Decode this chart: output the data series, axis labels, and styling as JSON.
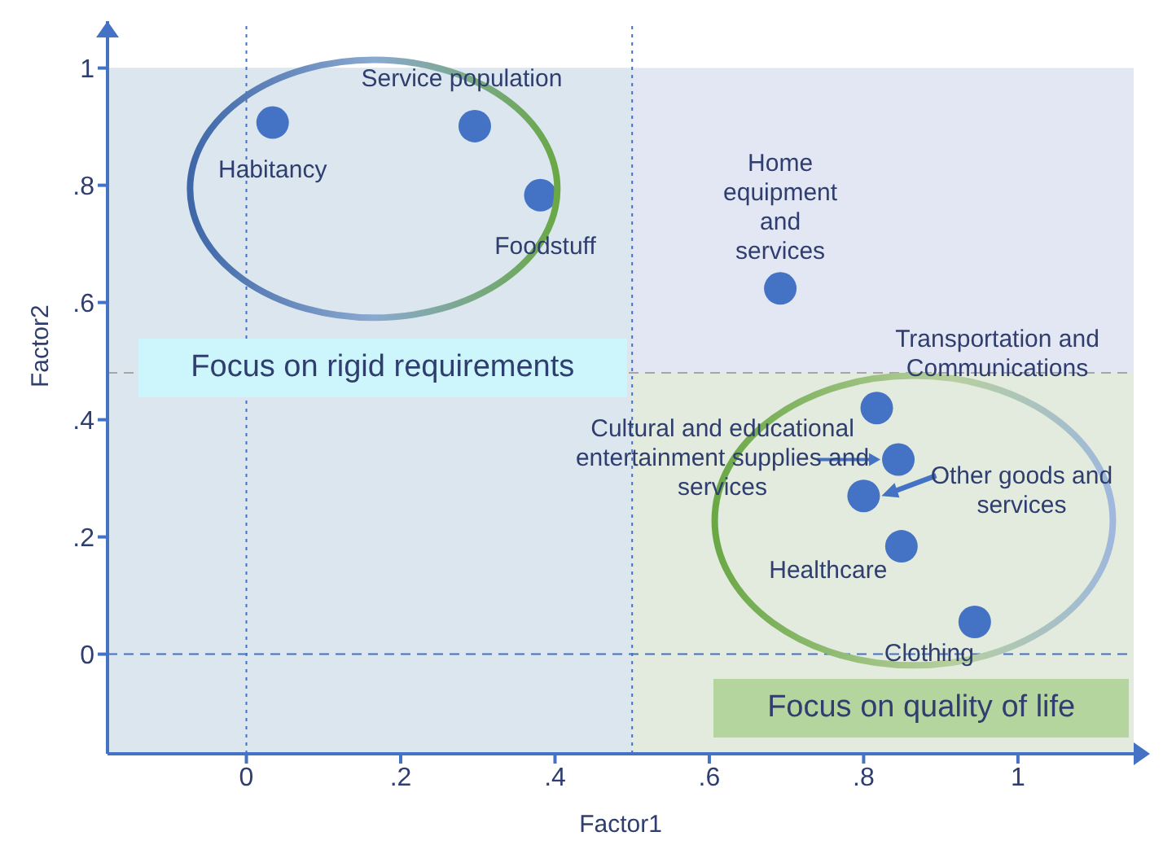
{
  "chart_data": {
    "type": "scatter",
    "xlabel": "Factor1",
    "ylabel": "Factor2",
    "x": [
      0.034,
      0.296,
      0.381,
      0.692,
      0.817,
      0.845,
      0.8,
      0.849,
      0.944
    ],
    "series": [
      {
        "color": "#4472c4",
        "values": [
          0.907,
          0.901,
          0.783,
          0.624,
          0.42,
          0.332,
          0.27,
          0.184,
          0.055
        ]
      }
    ],
    "xlim": [
      -0.18,
      1.15
    ],
    "ylim": [
      -0.17,
      1.08
    ],
    "xticks": [
      0,
      {
        "value": 0.2,
        "label": ".2"
      },
      {
        "value": 0.4,
        "label": ".4"
      },
      {
        "value": 0.6,
        "label": ".6"
      },
      {
        "value": 0.8,
        "label": ".8"
      },
      1
    ],
    "yticks": [
      0,
      {
        "value": 0.2,
        "label": ".2"
      },
      {
        "value": 0.4,
        "label": ".4"
      },
      {
        "value": 0.6,
        "label": ".6"
      },
      {
        "value": 0.8,
        "label": ".8"
      },
      1
    ],
    "marker": "circle",
    "bands": [
      {
        "axis": "y",
        "from": 0.48,
        "to": 1,
        "color": "#e3e7f3"
      },
      {
        "axis": "x",
        "from": -0.18,
        "to": 0.5,
        "color": "#dbe6ef"
      }
    ],
    "ref_lines": [
      {
        "axis": "x",
        "value": 0,
        "color": "#4472c4",
        "line_style": "dotted"
      },
      {
        "axis": "x",
        "value": 0.5,
        "color": "#4472c4",
        "line_style": "dotted"
      },
      {
        "axis": "y",
        "value": 0,
        "color": "#4472c4",
        "line_style": "dashed"
      },
      {
        "axis": "y",
        "value": 0.48,
        "color": "#a6a6a6",
        "line_style": "dashed"
      }
    ],
    "annotations": [
      {
        "text": "Habitancy",
        "x": 0.034,
        "y": 0.907
      },
      {
        "text": "Service population",
        "x": 0.296,
        "y": 0.901
      },
      {
        "text": "Foodstuff",
        "x": 0.381,
        "y": 0.783
      },
      {
        "text": "Home equipment and services",
        "x": 0.692,
        "y": 0.624
      },
      {
        "text": "Transportation and Communications",
        "x": 0.817,
        "y": 0.42
      },
      {
        "text": "Cultural and educational entertainment supplies and services",
        "x": 0.845,
        "y": 0.332
      },
      {
        "text": "Other goods and services",
        "x": 0.8,
        "y": 0.27
      },
      {
        "text": "Healthcare",
        "x": 0.849,
        "y": 0.184
      },
      {
        "text": "Clothing",
        "x": 0.944,
        "y": 0.055
      },
      "Focus on rigid requirements",
      "Focus on quality of life"
    ]
  }
}
